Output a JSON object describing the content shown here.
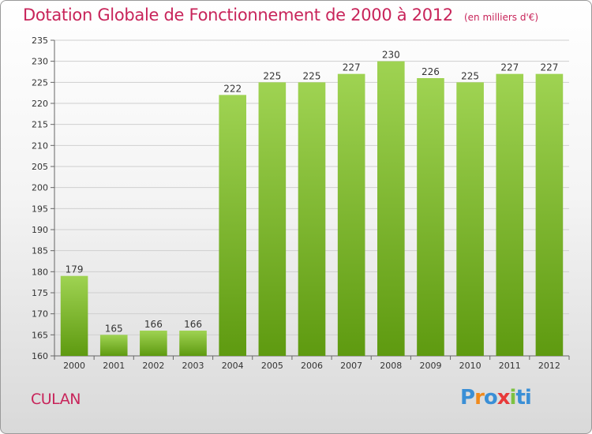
{
  "header": {
    "title": "Dotation Globale de Fonctionnement de 2000 à 2012",
    "unit": "(en milliers d'€)"
  },
  "footer": {
    "commune": "CULAN",
    "logo": "Proxiti"
  },
  "colors": {
    "title": "#c8245a",
    "bar_top": "#9fd352",
    "bar_bottom": "#5e9a10",
    "grid": "#cfcfcf"
  },
  "chart_data": {
    "type": "bar",
    "categories": [
      "2000",
      "2001",
      "2002",
      "2003",
      "2004",
      "2005",
      "2006",
      "2007",
      "2008",
      "2009",
      "2010",
      "2011",
      "2012"
    ],
    "values": [
      179,
      165,
      166,
      166,
      222,
      225,
      225,
      227,
      230,
      226,
      225,
      227,
      227
    ],
    "title": "Dotation Globale de Fonctionnement de 2000 à 2012",
    "subtitle": "(en milliers d'€)",
    "xlabel": "",
    "ylabel": "",
    "ylim": [
      160,
      235
    ],
    "yticks": [
      160,
      165,
      170,
      175,
      180,
      185,
      190,
      195,
      200,
      205,
      210,
      215,
      220,
      225,
      230,
      235
    ],
    "grid": true,
    "data_labels": true
  }
}
